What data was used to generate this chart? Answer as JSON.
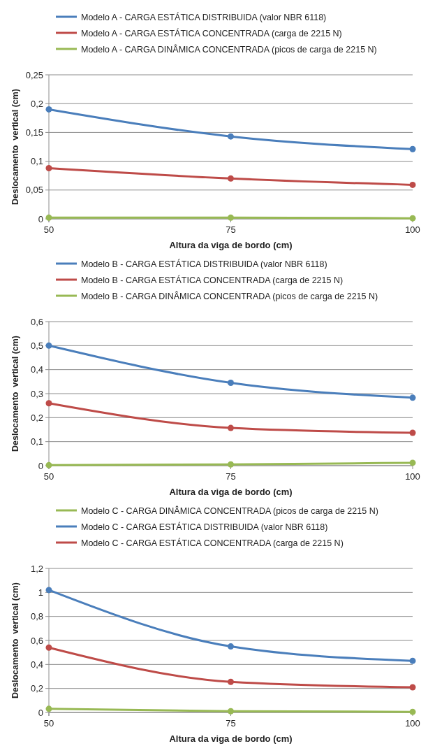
{
  "chart_data": [
    {
      "type": "line",
      "xlabel": "Altura da viga de bordo (cm)",
      "ylabel": "Deslocamento  vertical (cm)",
      "x": [
        50,
        75,
        100
      ],
      "xlim": [
        50,
        100
      ],
      "xticks": [
        50,
        75,
        100
      ],
      "ylim": [
        0,
        0.25
      ],
      "yticks": [
        {
          "value": 0,
          "label": "0"
        },
        {
          "value": 0.05,
          "label": "0,05"
        },
        {
          "value": 0.1,
          "label": "0,1"
        },
        {
          "value": 0.15,
          "label": "0,15"
        },
        {
          "value": 0.2,
          "label": "0,2"
        },
        {
          "value": 0.25,
          "label": "0,25"
        }
      ],
      "grid": "y",
      "legend": "top",
      "marker": "circle",
      "series": [
        {
          "name": "Modelo A - CARGA ESTÁTICA DISTRIBUIDA (valor NBR 6118)",
          "color": "#4a7ebb",
          "values": [
            0.19,
            0.143,
            0.121
          ]
        },
        {
          "name": "Modelo A - CARGA ESTÁTICA CONCENTRADA (carga de 2215 N)",
          "color": "#be4b48",
          "values": [
            0.088,
            0.07,
            0.059
          ]
        },
        {
          "name": "Modelo A - CARGA DINÂMICA CONCENTRADA (picos de carga de 2215 N)",
          "color": "#98b954",
          "values": [
            0.002,
            0.002,
            0.001
          ]
        }
      ]
    },
    {
      "type": "line",
      "xlabel": "Altura da viga de bordo (cm)",
      "ylabel": "Deslocamento  vertical (cm)",
      "x": [
        50,
        75,
        100
      ],
      "xlim": [
        50,
        100
      ],
      "xticks": [
        50,
        75,
        100
      ],
      "ylim": [
        0,
        0.6
      ],
      "yticks": [
        {
          "value": 0,
          "label": "0"
        },
        {
          "value": 0.1,
          "label": "0,1"
        },
        {
          "value": 0.2,
          "label": "0,2"
        },
        {
          "value": 0.3,
          "label": "0,3"
        },
        {
          "value": 0.4,
          "label": "0,4"
        },
        {
          "value": 0.5,
          "label": "0,5"
        },
        {
          "value": 0.6,
          "label": "0,6"
        }
      ],
      "grid": "y",
      "legend": "top",
      "marker": "circle",
      "series": [
        {
          "name": "Modelo B - CARGA ESTÁTICA DISTRIBUIDA (valor NBR 6118)",
          "color": "#4a7ebb",
          "values": [
            0.5,
            0.345,
            0.283
          ]
        },
        {
          "name": "Modelo B - CARGA ESTÁTICA CONCENTRADA (carga de 2215 N)",
          "color": "#be4b48",
          "values": [
            0.26,
            0.157,
            0.137
          ]
        },
        {
          "name": "Modelo B - CARGA DINÂMICA CONCENTRADA (picos de carga de 2215 N)",
          "color": "#98b954",
          "values": [
            0.002,
            0.005,
            0.012
          ]
        }
      ]
    },
    {
      "type": "line",
      "xlabel": "Altura da viga de bordo (cm)",
      "ylabel": "Deslocamento  vertical (cm)",
      "x": [
        50,
        75,
        100
      ],
      "xlim": [
        50,
        100
      ],
      "xticks": [
        50,
        75,
        100
      ],
      "ylim": [
        0,
        1.2
      ],
      "yticks": [
        {
          "value": 0,
          "label": "0"
        },
        {
          "value": 0.2,
          "label": "0,2"
        },
        {
          "value": 0.4,
          "label": "0,4"
        },
        {
          "value": 0.6,
          "label": "0,6"
        },
        {
          "value": 0.8,
          "label": "0,8"
        },
        1,
        {
          "value": 1.2,
          "label": "1,2"
        }
      ],
      "grid": "y",
      "legend": "top",
      "marker": "circle",
      "series": [
        {
          "name": "Modelo C - CARGA DINÂMICA CONCENTRADA (picos de carga de 2215 N)",
          "color": "#98b954",
          "values": [
            0.03,
            0.01,
            0.005
          ]
        },
        {
          "name": "Modelo C - CARGA ESTÁTICA DISTRIBUIDA (valor NBR 6118)",
          "color": "#4a7ebb",
          "values": [
            1.02,
            0.55,
            0.43
          ]
        },
        {
          "name": "Modelo C - CARGA ESTÁTICA CONCENTRADA (carga de 2215 N)",
          "color": "#be4b48",
          "values": [
            0.54,
            0.255,
            0.21
          ]
        }
      ]
    }
  ]
}
